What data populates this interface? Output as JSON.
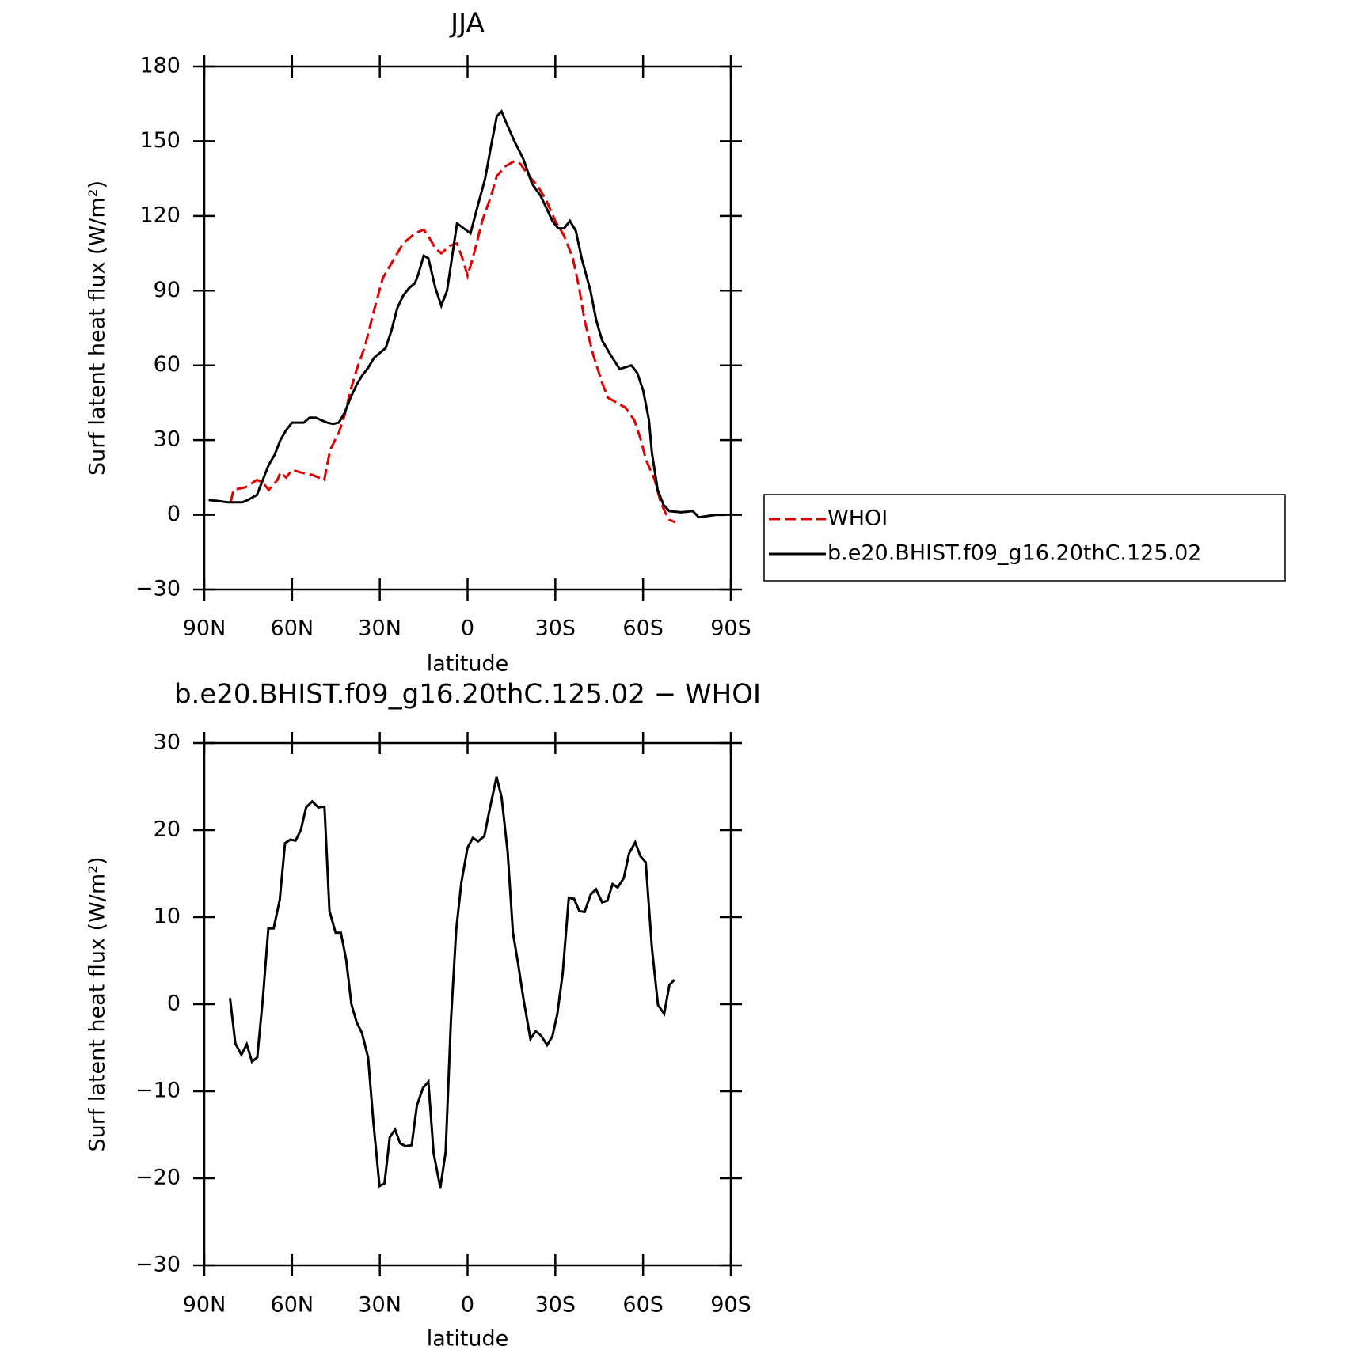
{
  "chart_data": [
    {
      "type": "line",
      "title": "JJA",
      "x_label": "latitude",
      "y_label": "Surf latent heat flux (W/m²)",
      "xlim": [
        90,
        -90
      ],
      "xticks": [
        {
          "value": 90,
          "label": "90N"
        },
        {
          "value": 60,
          "label": "60N"
        },
        {
          "value": 30,
          "label": "30N"
        },
        0,
        {
          "value": -30,
          "label": "30S"
        },
        {
          "value": -60,
          "label": "60S"
        },
        {
          "value": -90,
          "label": "90S"
        }
      ],
      "ylim": [
        -30,
        180
      ],
      "yticks": [
        {
          "value": -30,
          "label": "−30"
        },
        0,
        30,
        60,
        90,
        120,
        150,
        180
      ],
      "legend": "right",
      "series": [
        {
          "name": "WHOI",
          "color": "#e00000",
          "dash": "dashed",
          "x": [
            81,
            80,
            76,
            72,
            70,
            68,
            65,
            64,
            62,
            60,
            57,
            53,
            49,
            47,
            44,
            42,
            40,
            38,
            35,
            32,
            29,
            25,
            22,
            18,
            15,
            13,
            11,
            9,
            6,
            3.6,
            1.5,
            0,
            -2,
            -5,
            -8,
            -10,
            -13,
            -16,
            -18,
            -21,
            -24,
            -27,
            -30,
            -33,
            -36,
            -38,
            -40,
            -43,
            -46,
            -48,
            -51,
            -54,
            -57,
            -59,
            -61,
            -64,
            -66,
            -68,
            -69,
            -71
          ],
          "values": [
            5,
            10,
            11,
            14,
            13,
            10,
            14,
            17,
            15,
            18,
            17,
            16,
            14,
            26,
            33,
            40,
            50,
            58,
            68,
            82,
            95,
            103,
            109,
            113,
            114.5,
            111,
            107,
            105,
            108,
            109,
            102,
            96,
            104,
            118,
            128,
            136,
            140,
            142,
            141,
            136,
            132,
            126,
            118,
            112,
            103,
            92,
            78,
            64,
            53,
            47,
            45,
            43,
            38,
            31,
            22,
            14,
            5,
            0,
            -2,
            -3
          ]
        },
        {
          "name": "b.e20.BHIST.f09_g16.20thC.125.02",
          "color": "#000000",
          "dash": "solid",
          "x": [
            88.5,
            85,
            82,
            79,
            77,
            75,
            72,
            70,
            68,
            66,
            64,
            62,
            60,
            58,
            56,
            54,
            52,
            50,
            48,
            46,
            44,
            42,
            40,
            38,
            36,
            34,
            32,
            30,
            28,
            26,
            24,
            22,
            20,
            18,
            17,
            15,
            13.4,
            11,
            9,
            7,
            3.6,
            -1,
            -3,
            -6,
            -8,
            -10,
            -11.6,
            -13,
            -16,
            -19,
            -22,
            -25,
            -27,
            -29,
            -31,
            -33,
            -35,
            -37,
            -39,
            -42,
            -44,
            -46,
            -49,
            -52,
            -56,
            -58,
            -60,
            -62,
            -63,
            -65,
            -67,
            -69,
            -73,
            -77,
            -79,
            -82,
            -85,
            -88
          ],
          "values": [
            6,
            5.5,
            5,
            5,
            5,
            6,
            8,
            14,
            20,
            24,
            30,
            34,
            37,
            37,
            37,
            39,
            39,
            38,
            37,
            36.5,
            37,
            41,
            47,
            52,
            56,
            59,
            63,
            65,
            67,
            74,
            83,
            88,
            91,
            93,
            96,
            104,
            103,
            91,
            84,
            90,
            117,
            113,
            122,
            135,
            148,
            160,
            162,
            158,
            150,
            143,
            133,
            128,
            123,
            118,
            115,
            115,
            118,
            114,
            103,
            90,
            78,
            70,
            64,
            58.5,
            60,
            57,
            50,
            38,
            25,
            10,
            4,
            1.5,
            1,
            1.5,
            -1,
            -0.5,
            0,
            0
          ]
        }
      ]
    },
    {
      "type": "line",
      "title": "b.e20.BHIST.f09_g16.20thC.125.02 − WHOI",
      "x_label": "latitude",
      "y_label": "Surf latent heat flux (W/m²)",
      "xlim": [
        90,
        -90
      ],
      "xticks": [
        {
          "value": 90,
          "label": "90N"
        },
        {
          "value": 60,
          "label": "60N"
        },
        {
          "value": 30,
          "label": "30N"
        },
        0,
        {
          "value": -30,
          "label": "30S"
        },
        {
          "value": -60,
          "label": "60S"
        },
        {
          "value": -90,
          "label": "90S"
        }
      ],
      "ylim": [
        -30,
        30
      ],
      "yticks": [
        {
          "value": -30,
          "label": "−30"
        },
        {
          "value": -20,
          "label": "−20"
        },
        {
          "value": -10,
          "label": "−10"
        },
        0,
        10,
        20,
        30
      ],
      "color": "#000000",
      "x": [
        81.2,
        79.4,
        77.3,
        75.5,
        73.7,
        71.9,
        69.9,
        68.1,
        66.3,
        64.2,
        62.4,
        60.6,
        58.8,
        57.0,
        55.2,
        53.1,
        51.0,
        48.9,
        47.2,
        45.1,
        43.3,
        41.5,
        39.7,
        37.9,
        36.1,
        34.0,
        32.2,
        30.1,
        28.4,
        26.6,
        24.8,
        23.0,
        21.2,
        19.1,
        17.3,
        15.2,
        13.4,
        11.6,
        9.3,
        7.5,
        5.7,
        3.9,
        2.1,
        0,
        -1.8,
        -3.6,
        -5.7,
        -7.5,
        -9.9,
        -11.6,
        -13.7,
        -15.5,
        -17.3,
        -19.1,
        -21.5,
        -23.3,
        -25.1,
        -27.2,
        -29.0,
        -30.7,
        -32.5,
        -34.6,
        -36.4,
        -38.2,
        -40.0,
        -42.1,
        -43.9,
        -46.0,
        -47.8,
        -49.6,
        -51.3,
        -53.4,
        -55.2,
        -57.3,
        -59.1,
        -60.9,
        -63.0,
        -65.1,
        -67.2,
        -69.0,
        -70.7
      ],
      "values": [
        0.7,
        -4.5,
        -5.8,
        -4.6,
        -6.6,
        -6.1,
        1,
        8.7,
        8.7,
        12,
        18.5,
        18.9,
        18.8,
        20,
        22.6,
        23.3,
        22.6,
        22.7,
        10.7,
        8.2,
        8.2,
        5.1,
        0,
        -2.1,
        -3.3,
        -6.1,
        -13.5,
        -20.9,
        -20.6,
        -15.3,
        -14.4,
        -16,
        -16.3,
        -16.2,
        -11.6,
        -9.6,
        -8.9,
        -17.1,
        -21.1,
        -17,
        -2,
        8.5,
        14,
        18,
        19.1,
        18.7,
        19.3,
        22.3,
        26.1,
        23.8,
        17.5,
        8.2,
        4.6,
        0.6,
        -4,
        -3.1,
        -3.6,
        -4.7,
        -3.7,
        -1.1,
        3.5,
        12.2,
        12.1,
        10.7,
        10.6,
        12.6,
        13.2,
        11.7,
        11.9,
        13.8,
        13.4,
        14.5,
        17.3,
        18.6,
        17,
        16.3,
        6.5,
        -0.1,
        -1.1,
        2.2,
        2.8
      ]
    }
  ]
}
